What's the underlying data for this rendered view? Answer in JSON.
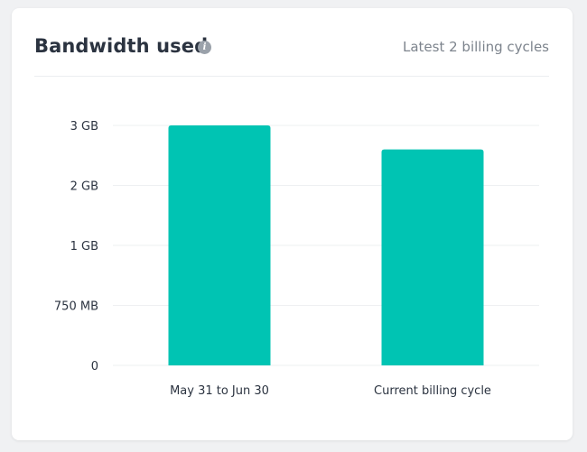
{
  "header": {
    "title": "Bandwidth used",
    "info_icon": "info-icon",
    "subtitle": "Latest 2 billing cycles"
  },
  "colors": {
    "bar": "#00c4b3"
  },
  "chart_data": {
    "type": "bar",
    "categories": [
      "May 31 to Jun 30",
      "Current billing cycle"
    ],
    "tick_labels": [
      "0",
      "750 MB",
      "1 GB",
      "2 GB",
      "3 GB"
    ],
    "bar_levels": [
      4,
      3.6
    ],
    "ylim": [
      0,
      4
    ],
    "grid": true,
    "title": "",
    "xlabel": "",
    "ylabel": ""
  }
}
